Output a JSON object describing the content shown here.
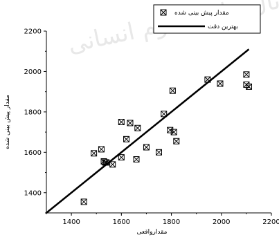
{
  "chart_data": {
    "type": "scatter",
    "xlabel": "مقدارواقعی",
    "ylabel": "مقدار پیش بینی شده",
    "xlim": [
      1300,
      2200
    ],
    "ylim": [
      1300,
      2200
    ],
    "xticks": [
      1400,
      1600,
      1800,
      2000,
      2200
    ],
    "yticks": [
      1400,
      1600,
      1800,
      2000,
      2200
    ],
    "grid": false,
    "legend_position": "top-right",
    "legend": [
      {
        "label": "مقدار پیش بینی شده",
        "marker": "boxed-x"
      },
      {
        "label": "بهترین دقت",
        "marker": "line"
      }
    ],
    "series": [
      {
        "name": "مقدار پیش بینی شده",
        "marker": "boxed-x",
        "points": [
          [
            1450,
            1355
          ],
          [
            1490,
            1595
          ],
          [
            1520,
            1615
          ],
          [
            1530,
            1555
          ],
          [
            1535,
            1550
          ],
          [
            1540,
            1550
          ],
          [
            1565,
            1540
          ],
          [
            1600,
            1575
          ],
          [
            1600,
            1750
          ],
          [
            1620,
            1665
          ],
          [
            1635,
            1745
          ],
          [
            1660,
            1565
          ],
          [
            1665,
            1720
          ],
          [
            1700,
            1625
          ],
          [
            1750,
            1600
          ],
          [
            1770,
            1790
          ],
          [
            1795,
            1710
          ],
          [
            1805,
            1905
          ],
          [
            1810,
            1700
          ],
          [
            1820,
            1655
          ],
          [
            1945,
            1960
          ],
          [
            1995,
            1940
          ],
          [
            2100,
            1985
          ],
          [
            2100,
            1935
          ],
          [
            2110,
            1925
          ]
        ]
      },
      {
        "name": "بهترین دقت",
        "type": "line",
        "points": [
          [
            1300,
            1300
          ],
          [
            2110,
            2110
          ]
        ]
      }
    ]
  },
  "watermark": {
    "text": "پرتال جامع علوم انسانی"
  },
  "colors": {
    "axis": "#000000",
    "marker": "#000000",
    "fit_line": "#000000",
    "background": "#ffffff",
    "watermark": "#e8e8e8"
  }
}
